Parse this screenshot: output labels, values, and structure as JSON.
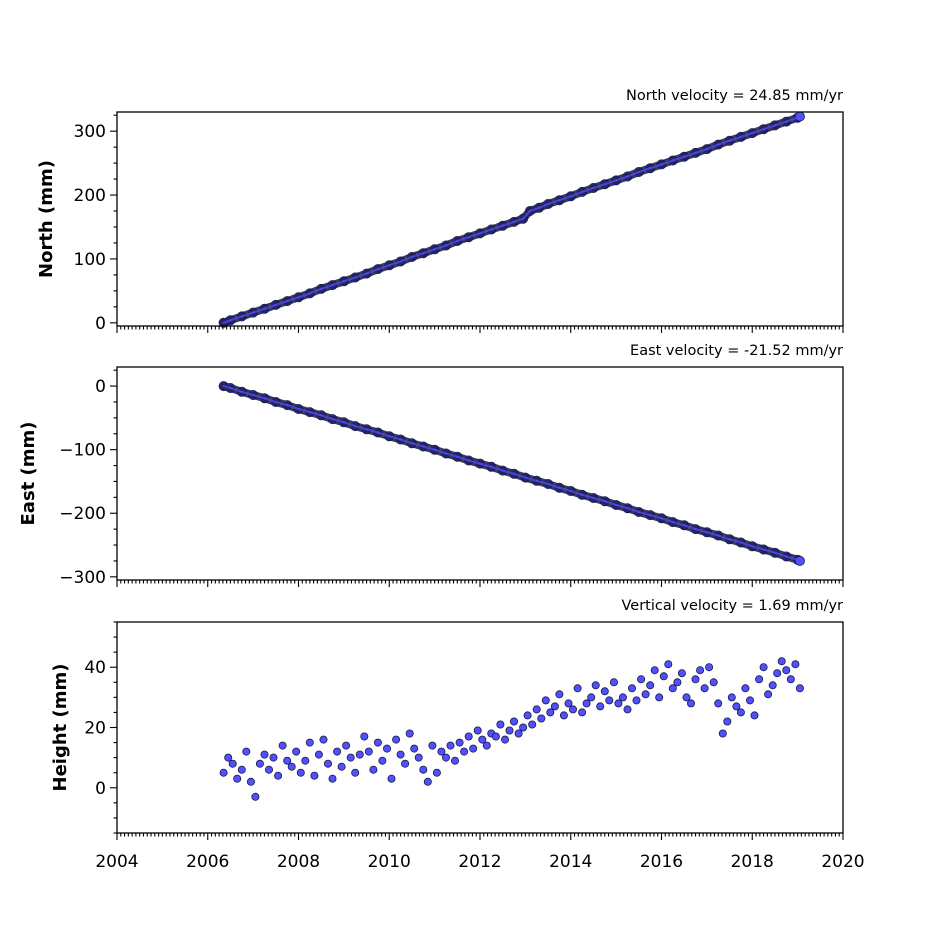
{
  "chart_data": [
    {
      "type": "scatter",
      "title": "North velocity = 24.85 mm/yr",
      "xlabel": "",
      "ylabel": "North (mm)",
      "xlim": [
        2004,
        2020
      ],
      "ylim": [
        -5,
        330
      ],
      "yticks": [
        0,
        100,
        200,
        300
      ],
      "ytick_labels": [
        "0",
        "100",
        "200",
        "300"
      ],
      "grid": false,
      "series": [
        {
          "color": "#5050ff",
          "edge_color": "#1a1a40",
          "x": [
            2006.35,
            2006.5,
            2006.75,
            2007.0,
            2007.25,
            2007.5,
            2007.75,
            2008.0,
            2008.25,
            2008.5,
            2008.75,
            2009.0,
            2009.25,
            2009.5,
            2009.75,
            2010.0,
            2010.25,
            2010.5,
            2010.75,
            2011.0,
            2011.25,
            2011.5,
            2011.75,
            2012.0,
            2012.25,
            2012.5,
            2012.75,
            2012.95,
            2013.1,
            2013.3,
            2013.5,
            2013.75,
            2014.0,
            2014.25,
            2014.5,
            2014.75,
            2015.0,
            2015.25,
            2015.5,
            2015.75,
            2016.0,
            2016.25,
            2016.5,
            2016.75,
            2017.0,
            2017.25,
            2017.5,
            2017.75,
            2018.0,
            2018.25,
            2018.5,
            2018.75,
            2019.0,
            2019.05
          ],
          "y": [
            0,
            4,
            10,
            16,
            22,
            28,
            34,
            40,
            46,
            53,
            59,
            65,
            71,
            77,
            84,
            90,
            96,
            103,
            109,
            115,
            121,
            128,
            134,
            140,
            146,
            152,
            158,
            163,
            175,
            180,
            186,
            192,
            198,
            205,
            211,
            217,
            223,
            229,
            236,
            242,
            248,
            254,
            260,
            266,
            272,
            279,
            285,
            291,
            297,
            303,
            309,
            315,
            321,
            323
          ]
        }
      ]
    },
    {
      "type": "scatter",
      "title": "East velocity = -21.52 mm/yr",
      "xlabel": "",
      "ylabel": "East (mm)",
      "xlim": [
        2004,
        2020
      ],
      "ylim": [
        -305,
        30
      ],
      "yticks": [
        0,
        -100,
        -200,
        -300
      ],
      "ytick_labels": [
        "0",
        "−100",
        "−200",
        "−300"
      ],
      "grid": false,
      "series": [
        {
          "color": "#5050ff",
          "edge_color": "#1a1a40",
          "x": [
            2006.35,
            2006.5,
            2006.75,
            2007.0,
            2007.25,
            2007.5,
            2007.75,
            2008.0,
            2008.25,
            2008.5,
            2008.75,
            2009.0,
            2009.25,
            2009.5,
            2009.75,
            2010.0,
            2010.25,
            2010.5,
            2010.75,
            2011.0,
            2011.25,
            2011.5,
            2011.75,
            2012.0,
            2012.25,
            2012.5,
            2012.75,
            2013.0,
            2013.25,
            2013.5,
            2013.75,
            2014.0,
            2014.25,
            2014.5,
            2014.75,
            2015.0,
            2015.25,
            2015.5,
            2015.75,
            2016.0,
            2016.25,
            2016.5,
            2016.75,
            2017.0,
            2017.25,
            2017.5,
            2017.75,
            2018.0,
            2018.25,
            2018.5,
            2018.75,
            2019.0,
            2019.05
          ],
          "y": [
            0,
            -3,
            -9,
            -14,
            -19,
            -25,
            -30,
            -36,
            -41,
            -46,
            -52,
            -57,
            -63,
            -68,
            -73,
            -79,
            -84,
            -90,
            -95,
            -100,
            -106,
            -111,
            -117,
            -122,
            -127,
            -133,
            -138,
            -144,
            -149,
            -154,
            -160,
            -165,
            -171,
            -176,
            -181,
            -187,
            -192,
            -198,
            -203,
            -208,
            -214,
            -219,
            -225,
            -230,
            -235,
            -241,
            -246,
            -252,
            -257,
            -262,
            -268,
            -273,
            -275
          ]
        }
      ]
    },
    {
      "type": "scatter",
      "title": "Vertical velocity = 1.69 mm/yr",
      "xlabel": "",
      "ylabel": "Height (mm)",
      "xlim": [
        2004,
        2020
      ],
      "ylim": [
        -15,
        55
      ],
      "yticks": [
        0,
        20,
        40
      ],
      "ytick_labels": [
        "0",
        "20",
        "40"
      ],
      "xticks": [
        2004,
        2006,
        2008,
        2010,
        2012,
        2014,
        2016,
        2018,
        2020
      ],
      "xtick_labels": [
        "2004",
        "2006",
        "2008",
        "2010",
        "2012",
        "2014",
        "2016",
        "2018",
        "2020"
      ],
      "grid": false,
      "series": [
        {
          "color": "#5050ff",
          "edge_color": "#1a1a40",
          "x": [
            2006.35,
            2006.45,
            2006.55,
            2006.65,
            2006.75,
            2006.85,
            2006.95,
            2007.05,
            2007.15,
            2007.25,
            2007.35,
            2007.45,
            2007.55,
            2007.65,
            2007.75,
            2007.85,
            2007.95,
            2008.05,
            2008.15,
            2008.25,
            2008.35,
            2008.45,
            2008.55,
            2008.65,
            2008.75,
            2008.85,
            2008.95,
            2009.05,
            2009.15,
            2009.25,
            2009.35,
            2009.45,
            2009.55,
            2009.65,
            2009.75,
            2009.85,
            2009.95,
            2010.05,
            2010.15,
            2010.25,
            2010.35,
            2010.45,
            2010.55,
            2010.65,
            2010.75,
            2010.85,
            2010.95,
            2011.05,
            2011.15,
            2011.25,
            2011.35,
            2011.45,
            2011.55,
            2011.65,
            2011.75,
            2011.85,
            2011.95,
            2012.05,
            2012.15,
            2012.25,
            2012.35,
            2012.45,
            2012.55,
            2012.65,
            2012.75,
            2012.85,
            2012.95,
            2013.05,
            2013.15,
            2013.25,
            2013.35,
            2013.45,
            2013.55,
            2013.65,
            2013.75,
            2013.85,
            2013.95,
            2014.05,
            2014.15,
            2014.25,
            2014.35,
            2014.45,
            2014.55,
            2014.65,
            2014.75,
            2014.85,
            2014.95,
            2015.05,
            2015.15,
            2015.25,
            2015.35,
            2015.45,
            2015.55,
            2015.65,
            2015.75,
            2015.85,
            2015.95,
            2016.05,
            2016.15,
            2016.25,
            2016.35,
            2016.45,
            2016.55,
            2016.65,
            2016.75,
            2016.85,
            2016.95,
            2017.05,
            2017.15,
            2017.25,
            2017.35,
            2017.45,
            2017.55,
            2017.65,
            2017.75,
            2017.85,
            2017.95,
            2018.05,
            2018.15,
            2018.25,
            2018.35,
            2018.45,
            2018.55,
            2018.65,
            2018.75,
            2018.85,
            2018.95,
            2019.05
          ],
          "y": [
            5,
            10,
            8,
            3,
            6,
            12,
            2,
            -3,
            8,
            11,
            6,
            10,
            4,
            14,
            9,
            7,
            12,
            5,
            9,
            15,
            4,
            11,
            16,
            8,
            3,
            12,
            7,
            14,
            10,
            5,
            11,
            17,
            12,
            6,
            15,
            9,
            13,
            3,
            16,
            11,
            8,
            18,
            13,
            10,
            6,
            2,
            14,
            5,
            12,
            10,
            14,
            9,
            15,
            12,
            17,
            13,
            19,
            16,
            14,
            18,
            17,
            21,
            16,
            19,
            22,
            18,
            20,
            24,
            21,
            26,
            23,
            29,
            25,
            27,
            31,
            24,
            28,
            26,
            33,
            25,
            28,
            30,
            34,
            27,
            32,
            29,
            35,
            28,
            30,
            26,
            33,
            29,
            36,
            31,
            34,
            39,
            30,
            37,
            41,
            33,
            35,
            38,
            30,
            28,
            36,
            39,
            33,
            40,
            35,
            28,
            18,
            22,
            30,
            27,
            25,
            33,
            29,
            24,
            36,
            40,
            31,
            34,
            38,
            42,
            39,
            36,
            41,
            33
          ]
        }
      ]
    }
  ]
}
